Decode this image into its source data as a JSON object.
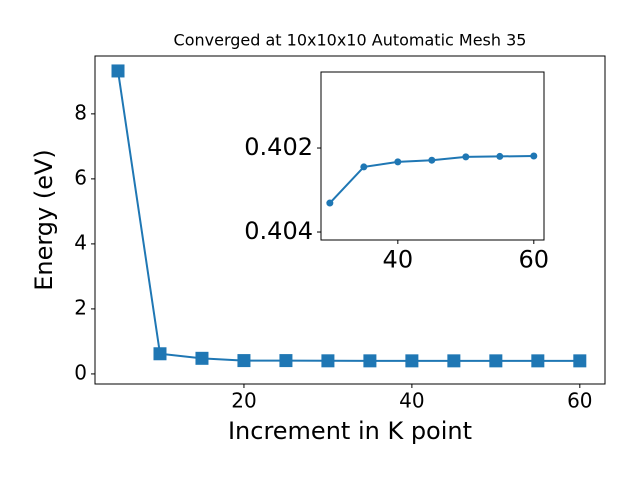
{
  "chart_data": [
    {
      "type": "line",
      "title": "Converged at 10x10x10 Automatic Mesh 35",
      "x_label": "Increment in K point",
      "y_label": "Energy (eV)",
      "x": [
        5,
        10,
        15,
        20,
        25,
        30,
        35,
        40,
        45,
        50,
        55,
        60
      ],
      "values": [
        9.32,
        0.62,
        0.48,
        0.41,
        0.41,
        0.4033,
        0.4025,
        0.4023,
        0.4023,
        0.4022,
        0.4022,
        0.4022
      ],
      "color": "#1f77b4",
      "marker": "square",
      "xlim": [
        2.26,
        63.0
      ],
      "ylim": [
        -0.31,
        9.78
      ],
      "xticks": [
        20,
        40,
        60
      ],
      "yticks": [
        0,
        2,
        4,
        6,
        8
      ]
    },
    {
      "type": "line",
      "x": [
        30,
        35,
        40,
        45,
        50,
        55,
        60
      ],
      "values": [
        0.40331,
        0.40245,
        0.40233,
        0.40229,
        0.40221,
        0.4022,
        0.40219
      ],
      "color": "#1f77b4",
      "marker": "circle",
      "xlim": [
        28.7,
        61.5
      ],
      "ylim": [
        0.40419,
        0.40019
      ],
      "xticks": [
        40,
        60
      ],
      "yticks": [
        0.402,
        0.404
      ]
    }
  ]
}
